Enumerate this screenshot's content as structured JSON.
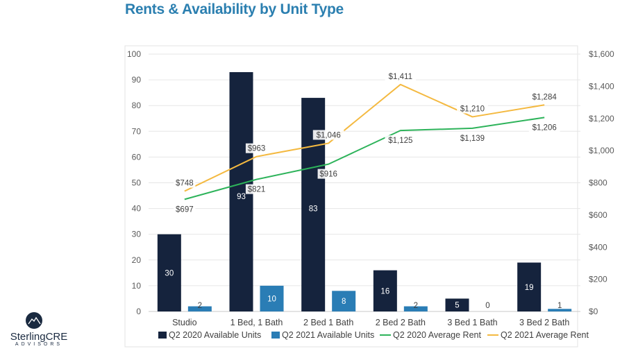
{
  "slide": {
    "title": "Rents & Availability by Unit Type",
    "logo": {
      "name": "SterlingCRE",
      "tagline": "ADVISORS"
    }
  },
  "colors": {
    "q2_2020_units": "#15233d",
    "q2_2021_units": "#2a7db5",
    "q2_2020_rent": "#2db35a",
    "q2_2021_rent": "#f4b940"
  },
  "chart_data": {
    "type": "bar",
    "categories": [
      "Studio",
      "1 Bed, 1 Bath",
      "2 Bed 1 Bath",
      "2 Bed 2 Bath",
      "3 Bed 1 Bath",
      "3 Bed 2 Bath"
    ],
    "ylim": [
      0,
      100
    ],
    "y_ticks": [
      "0",
      "10",
      "20",
      "30",
      "40",
      "50",
      "60",
      "70",
      "80",
      "90",
      "100"
    ],
    "y2lim": [
      0,
      1600
    ],
    "y2_ticks": [
      "$0",
      "$200",
      "$400",
      "$600",
      "$800",
      "$1,000",
      "$1,200",
      "$1,400",
      "$1,600"
    ],
    "grid": true,
    "legend_position": "bottom",
    "series": [
      {
        "name": "Q2 2020 Available Units",
        "type": "bar",
        "axis": "left",
        "values": [
          30,
          93,
          83,
          16,
          5,
          19
        ],
        "labels": [
          "30",
          "93",
          "83",
          "16",
          "5",
          "19"
        ]
      },
      {
        "name": "Q2 2021 Available Units",
        "type": "bar",
        "axis": "left",
        "values": [
          2,
          10,
          8,
          2,
          0,
          1
        ],
        "labels": [
          "2",
          "10",
          "8",
          "2",
          "0",
          "1"
        ]
      },
      {
        "name": "Q2 2020 Average Rent",
        "type": "line",
        "axis": "right",
        "values": [
          697,
          821,
          916,
          1125,
          1139,
          1206
        ],
        "labels": [
          "$697",
          "$821",
          "$916",
          "$1,125",
          "$1,139",
          "$1,206"
        ]
      },
      {
        "name": "Q2 2021 Average Rent",
        "type": "line",
        "axis": "right",
        "values": [
          748,
          963,
          1046,
          1411,
          1210,
          1284
        ],
        "labels": [
          "$748",
          "$963",
          "$1,046",
          "$1,411",
          "$1,210",
          "$1,284"
        ]
      }
    ]
  }
}
